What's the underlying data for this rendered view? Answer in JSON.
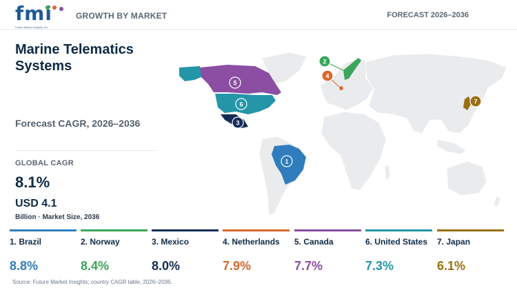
{
  "header": {
    "logo_text": "fmi",
    "logo_subtitle": "Future Market Insights, Inc.",
    "section_label": "GROWTH BY MARKET",
    "forecast_range": "FORECAST 2026–2036"
  },
  "summary": {
    "title": "Marine Telematics Systems",
    "forecast_label": "Forecast CAGR, 2026–2036",
    "global_cagr_label": "GLOBAL CAGR",
    "global_cagr_value": "8.1%",
    "market_size_value": "USD 4.1",
    "market_size_note": "Billion · Market Size, 2036"
  },
  "colors": {
    "brazil": "#2f7dbd",
    "norway": "#3aa55a",
    "mexico": "#142c55",
    "netherlands": "#d9672e",
    "canada": "#8b4ea3",
    "united_states": "#2496a8",
    "japan": "#9a6f12",
    "land": "#e9ebed"
  },
  "countries": [
    {
      "rank": "1",
      "label": "1. Brazil",
      "cagr": "8.8%",
      "color": "#2f7dbd"
    },
    {
      "rank": "2",
      "label": "2. Norway",
      "cagr": "8.4%",
      "color": "#3aa55a"
    },
    {
      "rank": "3",
      "label": "3. Mexico",
      "cagr": "8.0%",
      "color": "#142c55"
    },
    {
      "rank": "4",
      "label": "4. Netherlands",
      "cagr": "7.9%",
      "color": "#d9672e"
    },
    {
      "rank": "5",
      "label": "5. Canada",
      "cagr": "7.7%",
      "color": "#8b4ea3"
    },
    {
      "rank": "6",
      "label": "6. United States",
      "cagr": "7.3%",
      "color": "#2496a8"
    },
    {
      "rank": "7",
      "label": "7. Japan",
      "cagr": "6.1%",
      "color": "#9a6f12"
    }
  ],
  "source": "Source: Future Market Insights; country CAGR table, 2026–2036."
}
